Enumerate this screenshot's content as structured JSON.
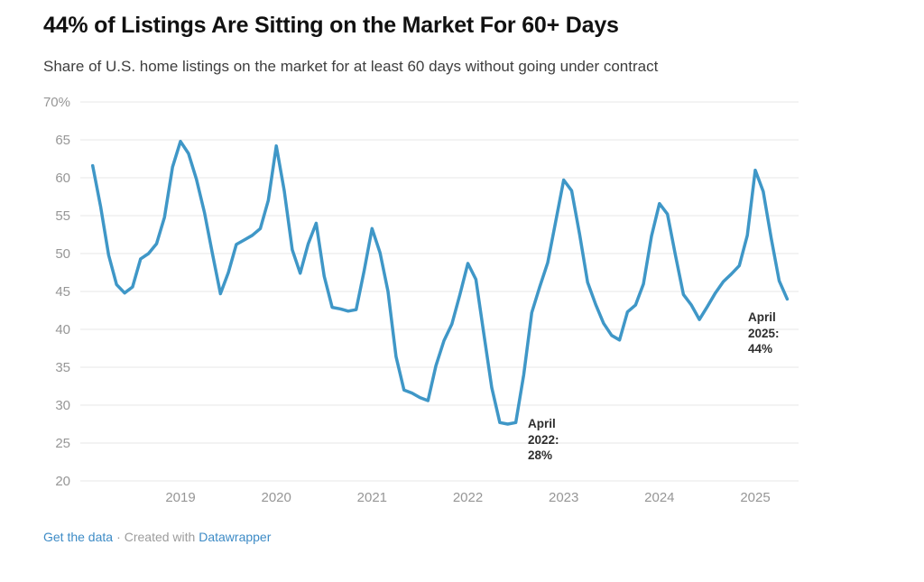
{
  "header": {
    "title": "44% of Listings Are Sitting on the Market For 60+ Days",
    "subtitle": "Share of U.S. home listings on the market for at least 60 days without going under contract"
  },
  "chart_data": {
    "type": "line",
    "title": "44% of Listings Are Sitting on the Market For 60+ Days",
    "subtitle": "Share of U.S. home listings on the market for at least 60 days without going under contract",
    "xlabel": "",
    "ylabel": "",
    "ylim": [
      20,
      70
    ],
    "grid": "horizontal-only",
    "legend": "none",
    "line_color": "#3f97c7",
    "gridline_color": "#e7e7e7",
    "axis_label_color": "#969696",
    "y_ticks": [
      70,
      65,
      60,
      55,
      50,
      45,
      40,
      35,
      30,
      25,
      20
    ],
    "y_tick_labels": [
      "70%",
      "65",
      "60",
      "55",
      "50",
      "45",
      "40",
      "35",
      "30",
      "25",
      "20"
    ],
    "x_tick_labels": [
      "2019",
      "2020",
      "2021",
      "2022",
      "2023",
      "2024",
      "2025"
    ],
    "series": [
      {
        "name": "Share of listings on market 60+ days",
        "x": [
          "2018-01",
          "2018-02",
          "2018-03",
          "2018-04",
          "2018-05",
          "2018-06",
          "2018-07",
          "2018-08",
          "2018-09",
          "2018-10",
          "2018-11",
          "2018-12",
          "2019-01",
          "2019-02",
          "2019-03",
          "2019-04",
          "2019-05",
          "2019-06",
          "2019-07",
          "2019-08",
          "2019-09",
          "2019-10",
          "2019-11",
          "2019-12",
          "2020-01",
          "2020-02",
          "2020-03",
          "2020-04",
          "2020-05",
          "2020-06",
          "2020-07",
          "2020-08",
          "2020-09",
          "2020-10",
          "2020-11",
          "2020-12",
          "2021-01",
          "2021-02",
          "2021-03",
          "2021-04",
          "2021-05",
          "2021-06",
          "2021-07",
          "2021-08",
          "2021-09",
          "2021-10",
          "2021-11",
          "2021-12",
          "2022-01",
          "2022-02",
          "2022-03",
          "2022-04",
          "2022-05",
          "2022-06",
          "2022-07",
          "2022-08",
          "2022-09",
          "2022-10",
          "2022-11",
          "2022-12",
          "2023-01",
          "2023-02",
          "2023-03",
          "2023-04",
          "2023-05",
          "2023-06",
          "2023-07",
          "2023-08",
          "2023-09",
          "2023-10",
          "2023-11",
          "2023-12",
          "2024-01",
          "2024-02",
          "2024-03",
          "2024-04",
          "2024-05",
          "2024-06",
          "2024-07",
          "2024-08",
          "2024-09",
          "2024-10",
          "2024-11",
          "2024-12",
          "2025-01",
          "2025-02",
          "2025-03",
          "2025-04"
        ],
        "values": [
          61.6,
          56.2,
          49.8,
          45.9,
          44.8,
          45.6,
          49.3,
          50.0,
          51.3,
          54.8,
          61.4,
          64.8,
          63.2,
          59.8,
          55.4,
          50.0,
          44.7,
          47.5,
          51.2,
          51.8,
          52.4,
          53.3,
          57.0,
          64.2,
          58.3,
          50.5,
          47.4,
          51.3,
          54.0,
          47.0,
          42.9,
          42.7,
          42.4,
          42.6,
          47.7,
          53.3,
          50.1,
          45.0,
          36.4,
          32.0,
          31.6,
          31.0,
          30.6,
          35.2,
          38.5,
          40.7,
          44.6,
          48.7,
          46.6,
          39.4,
          32.3,
          27.7,
          27.5,
          27.7,
          34.0,
          42.2,
          45.6,
          48.8,
          54.2,
          59.7,
          58.3,
          52.5,
          46.2,
          43.3,
          40.8,
          39.2,
          38.6,
          42.3,
          43.2,
          46.0,
          52.3,
          56.6,
          55.2,
          49.8,
          44.6,
          43.2,
          41.3,
          43.0,
          44.8,
          46.3,
          47.3,
          48.4,
          52.4,
          61.0,
          58.2,
          52.0,
          46.4,
          44.0
        ]
      }
    ],
    "annotations": [
      {
        "x": "2022-04",
        "value": 28,
        "text": "April\n2022:\n28%"
      },
      {
        "x": "2025-04",
        "value": 44,
        "text": "April\n2025:\n44%"
      }
    ]
  },
  "footer": {
    "get_data_label": "Get the data",
    "separator": "·",
    "created_with": "Created with",
    "datawrapper_label": "Datawrapper"
  }
}
